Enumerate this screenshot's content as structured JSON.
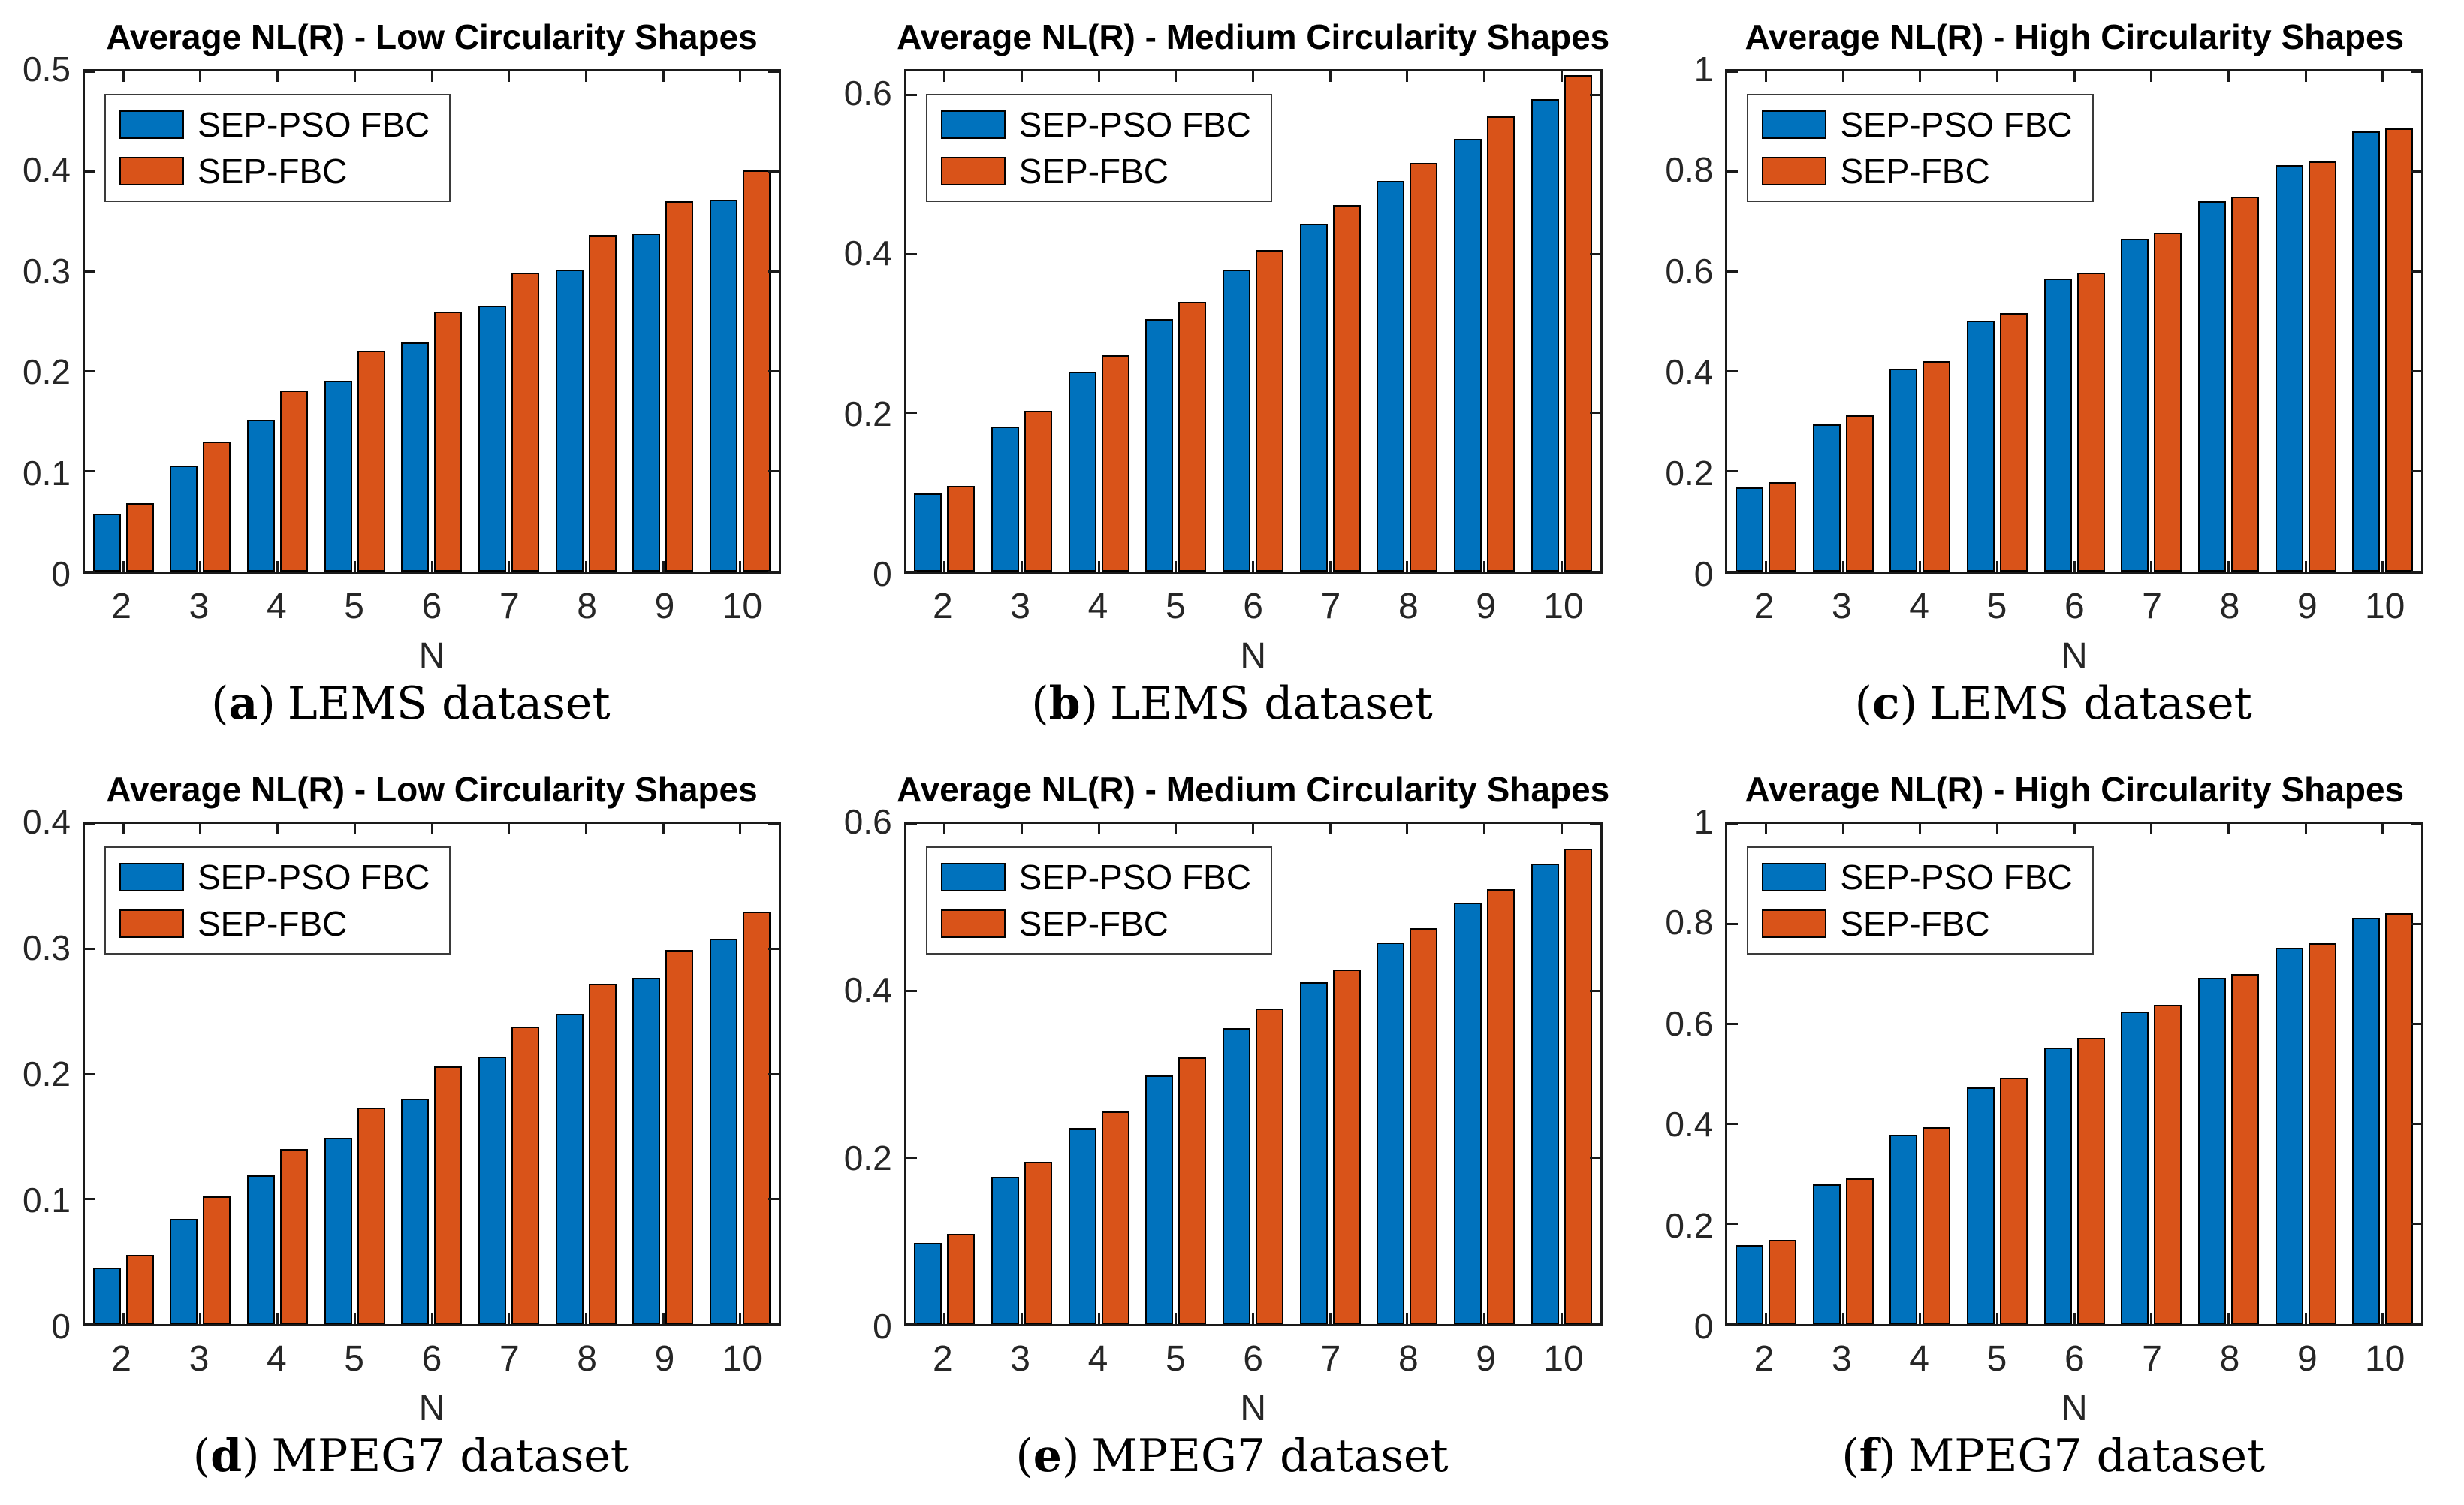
{
  "figure": {
    "background": "#ffffff",
    "axis_color": "#262626",
    "bar_edge_color": "#000000",
    "series_colors": {
      "sep_pso_fbc": "#0072BD",
      "sep_fbc": "#D95319"
    },
    "legend_labels": [
      "SEP-PSO FBC",
      "SEP-FBC"
    ]
  },
  "chart_data": [
    {
      "type": "bar",
      "title": "Average NL(R) - Low Circularity Shapes",
      "caption": {
        "open": "(",
        "letter": "a",
        "close": ")",
        "text": "LEMS dataset"
      },
      "xlabel": "N",
      "categories": [
        "2",
        "3",
        "4",
        "5",
        "6",
        "7",
        "8",
        "9",
        "10"
      ],
      "ylim": [
        0,
        0.5
      ],
      "yticks": [
        0,
        0.1,
        0.2,
        0.3,
        0.4,
        0.5
      ],
      "ytick_labels": [
        "0",
        "0.1",
        "0.2",
        "0.3",
        "0.4",
        "0.5"
      ],
      "legend_position": "top-left",
      "grid": false,
      "series": [
        {
          "name": "SEP-PSO FBC",
          "color": "#0072BD",
          "values": [
            0.058,
            0.106,
            0.152,
            0.191,
            0.229,
            0.266,
            0.302,
            0.338,
            0.372
          ]
        },
        {
          "name": "SEP-FBC",
          "color": "#D95319",
          "values": [
            0.068,
            0.13,
            0.181,
            0.221,
            0.26,
            0.299,
            0.336,
            0.37,
            0.401
          ]
        }
      ]
    },
    {
      "type": "bar",
      "title": "Average NL(R) - Medium Circularity Shapes",
      "caption": {
        "open": "(",
        "letter": "b",
        "close": ")",
        "text": "LEMS dataset"
      },
      "xlabel": "N",
      "categories": [
        "2",
        "3",
        "4",
        "5",
        "6",
        "7",
        "8",
        "9",
        "10"
      ],
      "ylim": [
        0,
        0.63
      ],
      "yticks": [
        0,
        0.2,
        0.4,
        0.6
      ],
      "ytick_labels": [
        "0",
        "0.2",
        "0.4",
        "0.6"
      ],
      "legend_position": "top-left",
      "grid": false,
      "series": [
        {
          "name": "SEP-PSO FBC",
          "color": "#0072BD",
          "values": [
            0.098,
            0.183,
            0.252,
            0.318,
            0.38,
            0.438,
            0.492,
            0.545,
            0.595
          ]
        },
        {
          "name": "SEP-FBC",
          "color": "#D95319",
          "values": [
            0.108,
            0.202,
            0.272,
            0.34,
            0.405,
            0.462,
            0.515,
            0.573,
            0.625
          ]
        }
      ]
    },
    {
      "type": "bar",
      "title": "Average NL(R) - High Circularity Shapes",
      "caption": {
        "open": "(",
        "letter": "c",
        "close": ")",
        "text": "LEMS dataset"
      },
      "xlabel": "N",
      "categories": [
        "2",
        "3",
        "4",
        "5",
        "6",
        "7",
        "8",
        "9",
        "10"
      ],
      "ylim": [
        0,
        1
      ],
      "yticks": [
        0,
        0.2,
        0.4,
        0.6,
        0.8,
        1
      ],
      "ytick_labels": [
        "0",
        "0.2",
        "0.4",
        "0.6",
        "0.8",
        "1"
      ],
      "legend_position": "top-left",
      "grid": false,
      "series": [
        {
          "name": "SEP-PSO FBC",
          "color": "#0072BD",
          "values": [
            0.168,
            0.295,
            0.405,
            0.502,
            0.585,
            0.665,
            0.74,
            0.812,
            0.88
          ]
        },
        {
          "name": "SEP-FBC",
          "color": "#D95319",
          "values": [
            0.178,
            0.312,
            0.42,
            0.517,
            0.597,
            0.677,
            0.749,
            0.82,
            0.886
          ]
        }
      ]
    },
    {
      "type": "bar",
      "title": "Average NL(R) - Low Circularity Shapes",
      "caption": {
        "open": "(",
        "letter": "d",
        "close": ")",
        "text": "MPEG7 dataset"
      },
      "xlabel": "N",
      "categories": [
        "2",
        "3",
        "4",
        "5",
        "6",
        "7",
        "8",
        "9",
        "10"
      ],
      "ylim": [
        0,
        0.4
      ],
      "yticks": [
        0,
        0.1,
        0.2,
        0.3,
        0.4
      ],
      "ytick_labels": [
        "0",
        "0.1",
        "0.2",
        "0.3",
        "0.4"
      ],
      "legend_position": "top-left",
      "grid": false,
      "series": [
        {
          "name": "SEP-PSO FBC",
          "color": "#0072BD",
          "values": [
            0.045,
            0.084,
            0.119,
            0.149,
            0.18,
            0.214,
            0.248,
            0.277,
            0.308
          ]
        },
        {
          "name": "SEP-FBC",
          "color": "#D95319",
          "values": [
            0.055,
            0.102,
            0.14,
            0.173,
            0.206,
            0.238,
            0.272,
            0.299,
            0.33
          ]
        }
      ]
    },
    {
      "type": "bar",
      "title": "Average NL(R) - Medium Circularity Shapes",
      "caption": {
        "open": "(",
        "letter": "e",
        "close": ")",
        "text": "MPEG7 dataset"
      },
      "xlabel": "N",
      "categories": [
        "2",
        "3",
        "4",
        "5",
        "6",
        "7",
        "8",
        "9",
        "10"
      ],
      "ylim": [
        0,
        0.6
      ],
      "yticks": [
        0,
        0.2,
        0.4,
        0.6
      ],
      "ytick_labels": [
        "0",
        "0.2",
        "0.4",
        "0.6"
      ],
      "legend_position": "top-left",
      "grid": false,
      "series": [
        {
          "name": "SEP-PSO FBC",
          "color": "#0072BD",
          "values": [
            0.097,
            0.177,
            0.235,
            0.298,
            0.355,
            0.41,
            0.458,
            0.505,
            0.552
          ]
        },
        {
          "name": "SEP-FBC",
          "color": "#D95319",
          "values": [
            0.108,
            0.195,
            0.255,
            0.32,
            0.378,
            0.425,
            0.475,
            0.522,
            0.57
          ]
        }
      ]
    },
    {
      "type": "bar",
      "title": "Average NL(R) - High Circularity Shapes",
      "caption": {
        "open": "(",
        "letter": "f",
        "close": ")",
        "text": "MPEG7 dataset"
      },
      "xlabel": "N",
      "categories": [
        "2",
        "3",
        "4",
        "5",
        "6",
        "7",
        "8",
        "9",
        "10"
      ],
      "ylim": [
        0,
        1
      ],
      "yticks": [
        0,
        0.2,
        0.4,
        0.6,
        0.8,
        1
      ],
      "ytick_labels": [
        "0",
        "0.2",
        "0.4",
        "0.6",
        "0.8",
        "1"
      ],
      "legend_position": "top-left",
      "grid": false,
      "series": [
        {
          "name": "SEP-PSO FBC",
          "color": "#0072BD",
          "values": [
            0.158,
            0.28,
            0.378,
            0.473,
            0.553,
            0.625,
            0.692,
            0.752,
            0.813
          ]
        },
        {
          "name": "SEP-FBC",
          "color": "#D95319",
          "values": [
            0.168,
            0.292,
            0.393,
            0.492,
            0.572,
            0.638,
            0.7,
            0.762,
            0.822
          ]
        }
      ]
    }
  ]
}
